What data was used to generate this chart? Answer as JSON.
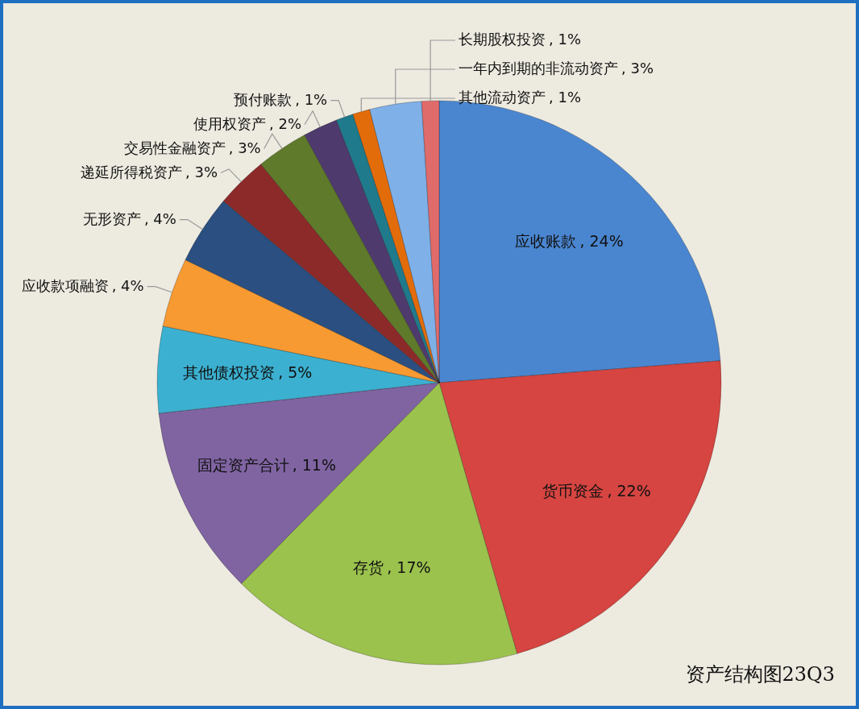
{
  "chart_data": {
    "type": "pie",
    "title": "资产结构图23Q3",
    "categories": [
      "应收账款",
      "货币资金",
      "存货",
      "固定资产合计",
      "其他债权投资",
      "应收款项融资",
      "无形资产",
      "递延所得税资产",
      "交易性金融资产",
      "使用权资产",
      "预付账款",
      "其他流动资产",
      "一年内到期的非流动资产",
      "长期股权投资"
    ],
    "values": [
      24,
      22,
      17,
      11,
      5,
      4,
      4,
      3,
      3,
      2,
      1,
      1,
      3,
      1
    ],
    "colors": [
      "#4a86d0",
      "#d64541",
      "#9bc24d",
      "#8064a2",
      "#3cb0d0",
      "#f79a32",
      "#2a4f80",
      "#8c2a2a",
      "#5e7a2a",
      "#4f3a6e",
      "#1f7a8c",
      "#e36c0a",
      "#7fb0e8",
      "#e06b6b"
    ],
    "value_labels": [
      ", 24%",
      ", 22%",
      ", 17%",
      ", 11%",
      ", 5%",
      ", 4%",
      ", 4%",
      ", 3%",
      ", 3%",
      ", 2%",
      ", 1%",
      ", 1%",
      ", 3%",
      ", 1%"
    ],
    "legend": false
  }
}
